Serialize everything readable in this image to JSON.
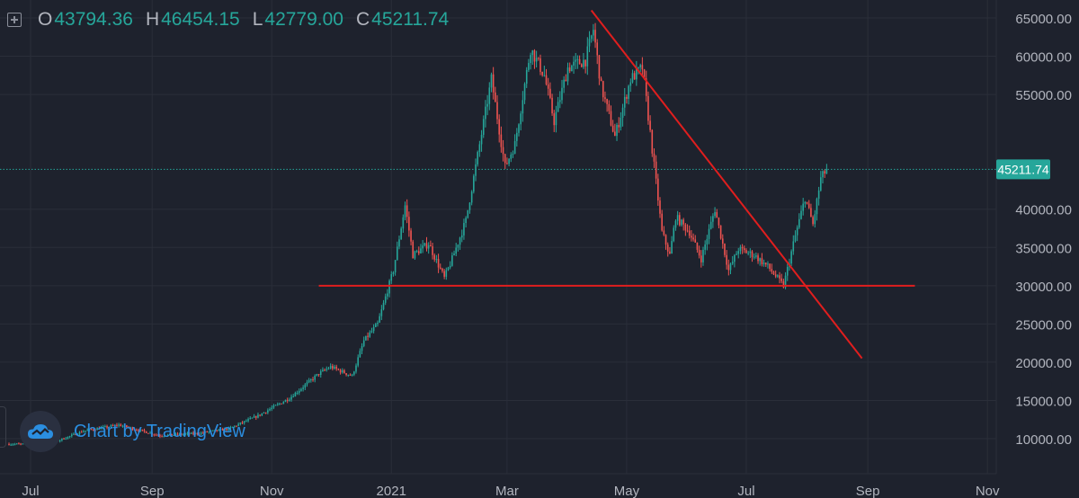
{
  "ohlc": {
    "o_key": "O",
    "o_val": "43794.36",
    "h_key": "H",
    "h_val": "46454.15",
    "l_key": "L",
    "l_val": "42779.00",
    "c_key": "C",
    "c_val": "45211.74"
  },
  "watermark": {
    "text": "Chart by TradingView",
    "icon": "tradingview-cloud-logo"
  },
  "colors": {
    "background": "#1e222d",
    "up": "#26a69a",
    "down": "#ef5350",
    "trendline": "#e01e1e",
    "price_badge": "#26a69a",
    "axis_text": "#b2b5be",
    "grid": "#2a2e39"
  },
  "chart_data": {
    "type": "candlestick",
    "x_axis_labels": [
      "Jul",
      "Sep",
      "Nov",
      "2021",
      "Mar",
      "May",
      "Jul",
      "Sep",
      "Nov"
    ],
    "y_axis_labels": [
      "65000.00",
      "60000.00",
      "55000.00",
      "40000.00",
      "35000.00",
      "30000.00",
      "25000.00",
      "20000.00",
      "15000.00",
      "10000.00"
    ],
    "last_price": "45211.74",
    "ylim": [
      5000,
      67000
    ],
    "grid": true,
    "price_path": [
      [
        "2020-06-20",
        9300
      ],
      [
        "2020-07-10",
        9250
      ],
      [
        "2020-07-28",
        11000
      ],
      [
        "2020-08-15",
        11800
      ],
      [
        "2020-09-05",
        10400
      ],
      [
        "2020-09-25",
        10700
      ],
      [
        "2020-10-10",
        11300
      ],
      [
        "2020-10-25",
        13000
      ],
      [
        "2020-11-10",
        15300
      ],
      [
        "2020-11-25",
        18500
      ],
      [
        "2020-12-01",
        19400
      ],
      [
        "2020-12-12",
        18200
      ],
      [
        "2020-12-18",
        22800
      ],
      [
        "2020-12-25",
        25000
      ],
      [
        "2021-01-02",
        32000
      ],
      [
        "2021-01-08",
        40500
      ],
      [
        "2021-01-12",
        34000
      ],
      [
        "2021-01-20",
        35500
      ],
      [
        "2021-01-28",
        31000
      ],
      [
        "2021-02-01",
        33500
      ],
      [
        "2021-02-08",
        38500
      ],
      [
        "2021-02-14",
        47000
      ],
      [
        "2021-02-21",
        57000
      ],
      [
        "2021-02-28",
        45500
      ],
      [
        "2021-03-05",
        48500
      ],
      [
        "2021-03-13",
        61000
      ],
      [
        "2021-03-20",
        57500
      ],
      [
        "2021-03-25",
        51500
      ],
      [
        "2021-04-01",
        58500
      ],
      [
        "2021-04-10",
        59500
      ],
      [
        "2021-04-14",
        63500
      ],
      [
        "2021-04-18",
        56000
      ],
      [
        "2021-04-25",
        49500
      ],
      [
        "2021-05-03",
        57000
      ],
      [
        "2021-05-09",
        58500
      ],
      [
        "2021-05-13",
        50000
      ],
      [
        "2021-05-19",
        37000
      ],
      [
        "2021-05-23",
        34000
      ],
      [
        "2021-05-26",
        39000
      ],
      [
        "2021-06-02",
        37000
      ],
      [
        "2021-06-08",
        33500
      ],
      [
        "2021-06-15",
        40000
      ],
      [
        "2021-06-22",
        32000
      ],
      [
        "2021-06-27",
        34800
      ],
      [
        "2021-07-05",
        34000
      ],
      [
        "2021-07-12",
        32500
      ],
      [
        "2021-07-20",
        30000
      ],
      [
        "2021-07-25",
        35500
      ],
      [
        "2021-07-31",
        41500
      ],
      [
        "2021-08-04",
        38000
      ],
      [
        "2021-08-08",
        44000
      ],
      [
        "2021-08-11",
        45211.74
      ]
    ],
    "annotations": [
      {
        "type": "horizontal_support",
        "from": "2020-11-25",
        "to": "2021-09-25",
        "y": 30000
      },
      {
        "type": "descending_trendline",
        "from": [
          "2021-04-13",
          66000
        ],
        "to": [
          "2021-08-29",
          20500
        ]
      }
    ]
  }
}
